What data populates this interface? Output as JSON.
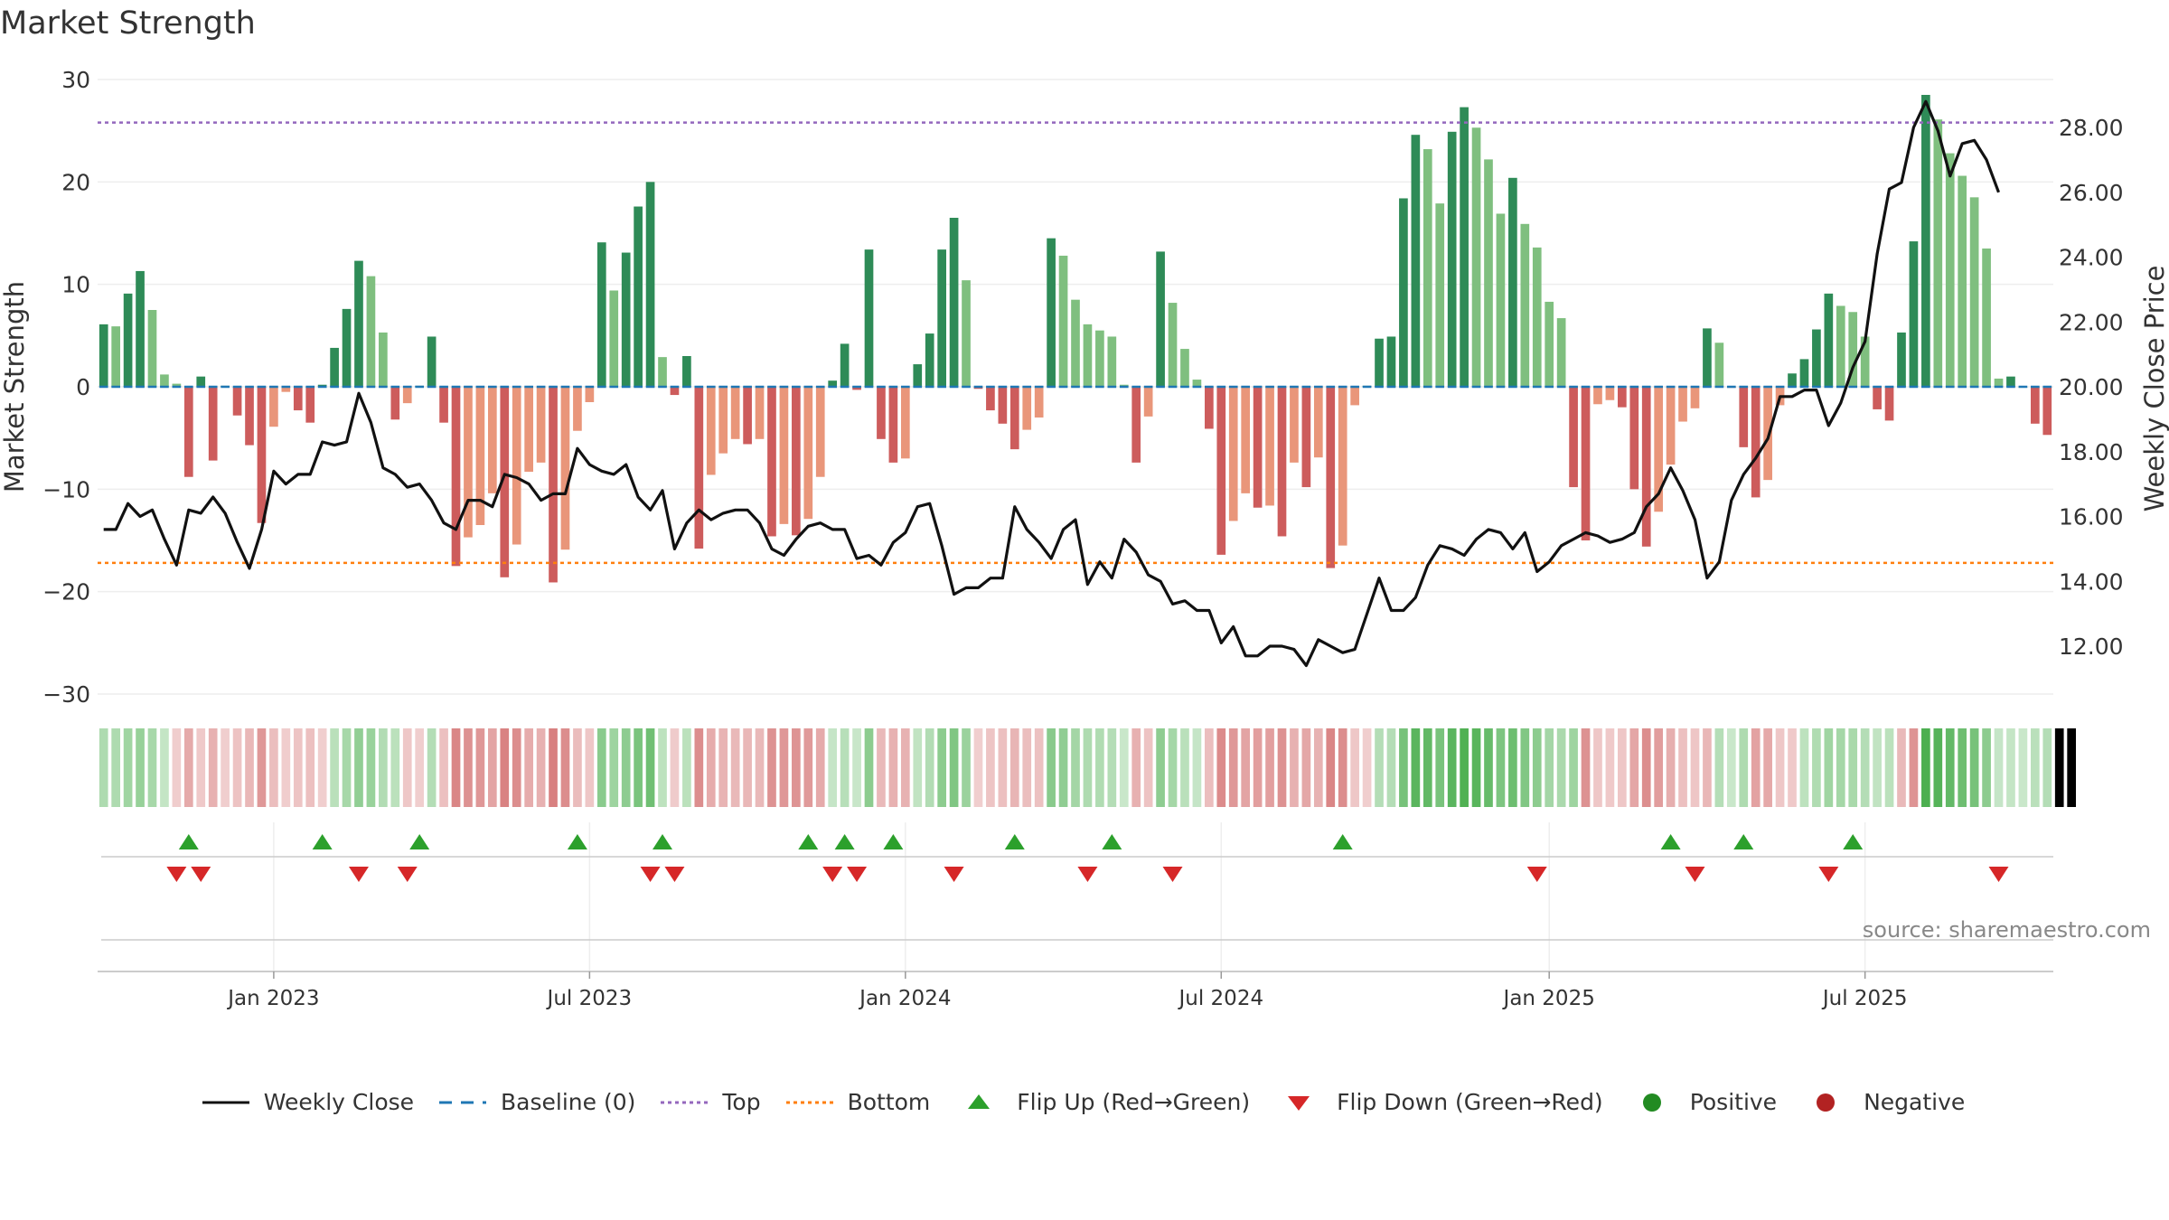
{
  "page": {
    "title": "Market Strength",
    "source": "source: sharemaestro.com"
  },
  "colors": {
    "strong_green": "#2e8b57",
    "light_green": "#7fbf7f",
    "strong_red": "#cd5c5c",
    "light_red": "#e9967a",
    "line": "#111111",
    "baseline": "#1f77b4",
    "top": "#9467bd",
    "bottom": "#ff7f0e",
    "flip_up": "#2ca02c",
    "flip_down": "#d62728",
    "positive": "#228b22",
    "negative": "#b22222"
  },
  "chart_data": {
    "type": "bar+line",
    "title": "Market Strength",
    "ylabel_left": "Market Strength",
    "ylabel_right": "Weekly Close Price",
    "y_left_range": [
      -30,
      30
    ],
    "y_left_ticks": [
      "30",
      "20",
      "10",
      "0",
      "−10",
      "−20",
      "−30"
    ],
    "y_right_range": [
      9.5,
      29.5
    ],
    "y_right_ticks": [
      "28.00",
      "26.00",
      "24.00",
      "22.00",
      "20.00",
      "18.00",
      "16.00",
      "14.00",
      "12.00"
    ],
    "x_ticks": [
      {
        "label": "Jan 2023",
        "week": 14
      },
      {
        "label": "Jul 2023",
        "week": 40
      },
      {
        "label": "Jan 2024",
        "week": 66
      },
      {
        "label": "Jul 2024",
        "week": 92
      },
      {
        "label": "Jan 2025",
        "week": 119
      },
      {
        "label": "Jul 2025",
        "week": 145
      }
    ],
    "top_line": 25.8,
    "bottom_line": -17.2,
    "strength": [
      6.1,
      5.9,
      9.1,
      11.3,
      7.5,
      1.2,
      0.3,
      -8.8,
      1.0,
      -7.2,
      0.1,
      -2.8,
      -5.7,
      -13.3,
      -3.9,
      -0.5,
      -2.3,
      -3.5,
      0.2,
      3.8,
      7.6,
      12.3,
      10.8,
      5.3,
      -3.2,
      -1.6,
      0.1,
      4.9,
      -3.5,
      -17.5,
      -14.7,
      -13.5,
      -10.4,
      -18.6,
      -15.4,
      -8.3,
      -7.4,
      -19.1,
      -15.9,
      -4.3,
      -1.5,
      14.1,
      9.4,
      13.1,
      17.6,
      20.0,
      2.9,
      -0.8,
      3.0,
      -15.8,
      -8.6,
      -6.5,
      -5.1,
      -5.6,
      -5.1,
      -14.6,
      -13.4,
      -14.5,
      -12.9,
      -8.8,
      0.6,
      4.2,
      -0.3,
      13.4,
      -5.1,
      -7.4,
      -7.0,
      2.2,
      5.2,
      13.4,
      16.5,
      10.4,
      -0.2,
      -2.3,
      -3.6,
      -6.1,
      -4.2,
      -3.0,
      14.5,
      12.8,
      8.5,
      6.1,
      5.5,
      4.9,
      0.2,
      -7.4,
      -2.9,
      13.2,
      8.2,
      3.7,
      0.7,
      -4.1,
      -16.4,
      -13.1,
      -10.4,
      -11.8,
      -11.6,
      -14.6,
      -7.4,
      -9.8,
      -6.9,
      -17.7,
      -15.5,
      -1.8,
      0.1,
      4.7,
      4.9,
      18.4,
      24.6,
      23.2,
      17.9,
      24.9,
      27.3,
      25.3,
      22.2,
      16.9,
      20.4,
      15.9,
      13.6,
      8.3,
      6.7,
      -9.8,
      -15.0,
      -1.7,
      -1.3,
      -2.0,
      -10.0,
      -15.6,
      -12.2,
      -7.6,
      -3.4,
      -2.1,
      5.7,
      4.3,
      -0.1,
      -5.9,
      -10.8,
      -9.1,
      -1.8,
      1.3,
      2.7,
      5.6,
      9.1,
      7.9,
      7.3,
      4.9,
      -2.2,
      -3.3,
      5.3,
      14.2,
      28.5,
      26.1,
      22.8,
      20.6,
      18.5,
      13.5,
      0.8,
      1.0,
      0.0,
      -3.6,
      -4.7
    ],
    "close": [
      15.6,
      15.6,
      16.4,
      16.0,
      16.2,
      15.3,
      14.5,
      16.2,
      16.1,
      16.6,
      16.1,
      15.2,
      14.4,
      15.6,
      17.4,
      17.0,
      17.3,
      17.3,
      18.3,
      18.2,
      18.3,
      19.8,
      18.9,
      17.5,
      17.3,
      16.9,
      17.0,
      16.5,
      15.8,
      15.6,
      16.5,
      16.5,
      16.3,
      17.3,
      17.2,
      17.0,
      16.5,
      16.7,
      16.7,
      18.1,
      17.6,
      17.4,
      17.3,
      17.6,
      16.6,
      16.2,
      16.8,
      15.0,
      15.8,
      16.2,
      15.9,
      16.1,
      16.2,
      16.2,
      15.8,
      15.0,
      14.8,
      15.3,
      15.7,
      15.8,
      15.6,
      15.6,
      14.7,
      14.8,
      14.5,
      15.2,
      15.5,
      16.3,
      16.4,
      15.1,
      13.6,
      13.8,
      13.8,
      14.1,
      14.1,
      16.3,
      15.6,
      15.2,
      14.7,
      15.6,
      15.9,
      13.9,
      14.6,
      14.1,
      15.3,
      14.9,
      14.2,
      14.0,
      13.3,
      13.4,
      13.1,
      13.1,
      12.1,
      12.6,
      11.7,
      11.7,
      12.0,
      12.0,
      11.9,
      11.4,
      12.2,
      12.0,
      11.8,
      11.9,
      13.0,
      14.1,
      13.1,
      13.1,
      13.5,
      14.5,
      15.1,
      15.0,
      14.8,
      15.3,
      15.6,
      15.5,
      15.0,
      15.5,
      14.3,
      14.6,
      15.1,
      15.3,
      15.5,
      15.4,
      15.2,
      15.3,
      15.5,
      16.3,
      16.7,
      17.5,
      16.8,
      15.9,
      14.1,
      14.6,
      16.5,
      17.3,
      17.8,
      18.4,
      19.7,
      19.7,
      19.9,
      19.9,
      18.8,
      19.5,
      20.6,
      21.4,
      24.1,
      26.1,
      26.3,
      28.0,
      28.8,
      27.9,
      26.5,
      27.5,
      27.6,
      27.0,
      26.0
    ],
    "regime": [
      1,
      1,
      1,
      1,
      1,
      1,
      -1,
      -1,
      -1,
      -1,
      -1,
      -1,
      -1,
      -1,
      -1,
      -1,
      -1,
      -1,
      -1,
      1,
      1,
      1,
      1,
      1,
      1,
      -1,
      -1,
      1,
      -1,
      -1,
      -1,
      -1,
      -1,
      -1,
      -1,
      -1,
      -1,
      -1,
      -1,
      -1,
      -1,
      1,
      1,
      1,
      1,
      1,
      1,
      -1,
      1,
      -1,
      -1,
      -1,
      -1,
      -1,
      -1,
      -1,
      -1,
      -1,
      -1,
      -1,
      1,
      1,
      1,
      1,
      -1,
      -1,
      -1,
      1,
      1,
      1,
      1,
      1,
      -1,
      -1,
      -1,
      -1,
      -1,
      -1,
      1,
      1,
      1,
      1,
      1,
      1,
      1,
      -1,
      -1,
      1,
      1,
      1,
      1,
      -1,
      -1,
      -1,
      -1,
      -1,
      -1,
      -1,
      -1,
      -1,
      -1,
      -1,
      -1,
      -1,
      -1,
      1,
      1,
      1,
      1,
      1,
      1,
      1,
      1,
      1,
      1,
      1,
      1,
      1,
      1,
      1,
      1,
      1,
      -1,
      -1,
      -1,
      -1,
      -1,
      -1,
      -1,
      -1,
      -1,
      -1,
      -1,
      1,
      1,
      1,
      -1,
      -1,
      -1,
      -1,
      1,
      1,
      1,
      1,
      1,
      1,
      1,
      1,
      -1,
      -1,
      1,
      1,
      1,
      1,
      1,
      1,
      1,
      1,
      1,
      1,
      1,
      -1,
      -1
    ],
    "flip_up_weeks": [
      7,
      18,
      26,
      39,
      46,
      58,
      61,
      65,
      75,
      83,
      102,
      129,
      135,
      144
    ],
    "flip_down_weeks": [
      6,
      8,
      21,
      25,
      45,
      47,
      60,
      62,
      70,
      81,
      88,
      118,
      131,
      142,
      156
    ],
    "legend": [
      {
        "key": "close",
        "label": "Weekly Close"
      },
      {
        "key": "baseline",
        "label": "Baseline (0)"
      },
      {
        "key": "top",
        "label": "Top"
      },
      {
        "key": "bottom",
        "label": "Bottom"
      },
      {
        "key": "flip_up",
        "label": "Flip Up (Red→Green)"
      },
      {
        "key": "flip_down",
        "label": "Flip Down (Green→Red)"
      },
      {
        "key": "positive",
        "label": "Positive"
      },
      {
        "key": "negative",
        "label": "Negative"
      }
    ]
  }
}
